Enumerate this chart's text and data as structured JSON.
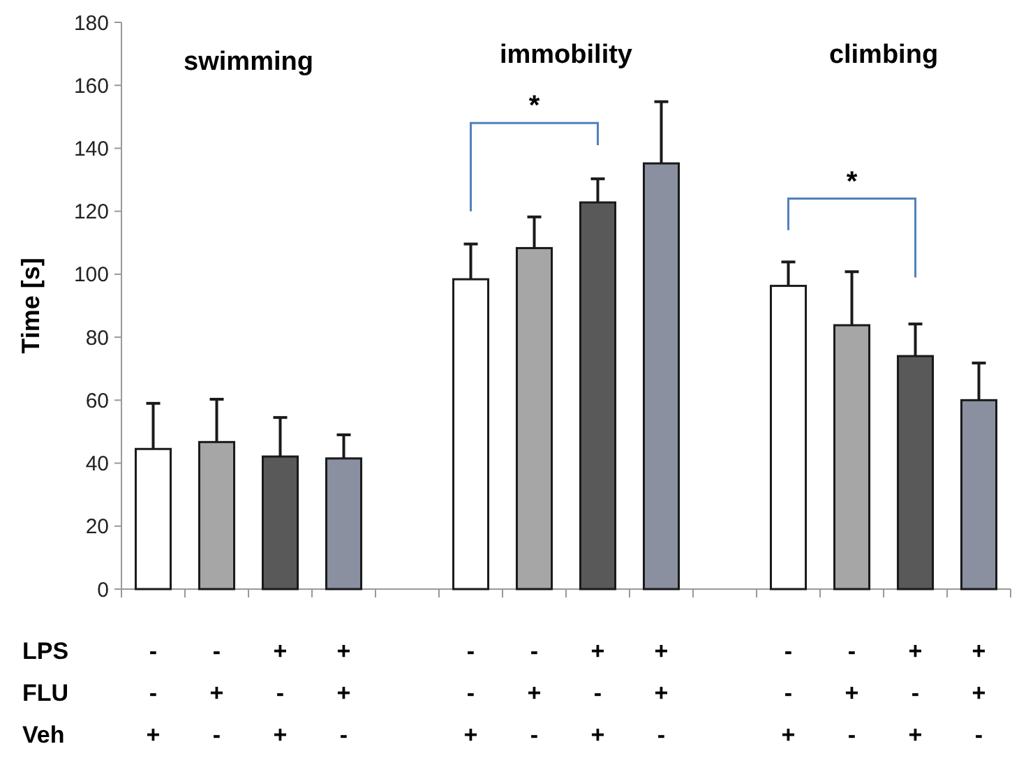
{
  "chart_data": {
    "type": "bar",
    "ylabel": "Time [s]",
    "categories": [
      "-\n-\n+",
      "-\n+\n-",
      "+\n-\n+",
      "+\n+\n-",
      null,
      "-\n-\n+",
      "-\n+\n-",
      "+\n-\n+",
      "+\n+\n-",
      null,
      "-\n-\n+",
      "-\n+\n-",
      "+\n-\n+",
      "+\n+\n-"
    ],
    "values": [
      44.5,
      46.7,
      42.1,
      41.5,
      null,
      98.4,
      108.3,
      122.8,
      135.2,
      null,
      96.3,
      83.8,
      74,
      60
    ],
    "errors": [
      [
        44.5,
        59
      ],
      [
        46.7,
        60.3
      ],
      [
        42.1,
        54.5
      ],
      [
        41.5,
        49
      ],
      null,
      [
        98.4,
        109.6
      ],
      [
        108.3,
        118.2
      ],
      [
        122.8,
        130.3
      ],
      [
        135.2,
        154.8
      ],
      null,
      [
        96.3,
        103.9
      ],
      [
        83.8,
        100.8
      ],
      [
        74,
        84.2
      ],
      [
        60,
        71.8
      ]
    ],
    "colors": [
      "#ffffff",
      "#a6a6a6",
      "#595959",
      "#8a90a0",
      null,
      "#ffffff",
      "#a6a6a6",
      "#595959",
      "#8a90a0",
      null,
      "#ffffff",
      "#a6a6a6",
      "#595959",
      "#8a90a0"
    ],
    "ylim": [
      0,
      180
    ],
    "yticks": [
      0,
      20,
      40,
      60,
      80,
      100,
      120,
      140,
      160,
      180
    ],
    "grid": false,
    "annotations": [
      "swimming",
      "immobility",
      "climbing",
      "*",
      "*",
      "LPS",
      "FLU",
      "Veh"
    ]
  }
}
